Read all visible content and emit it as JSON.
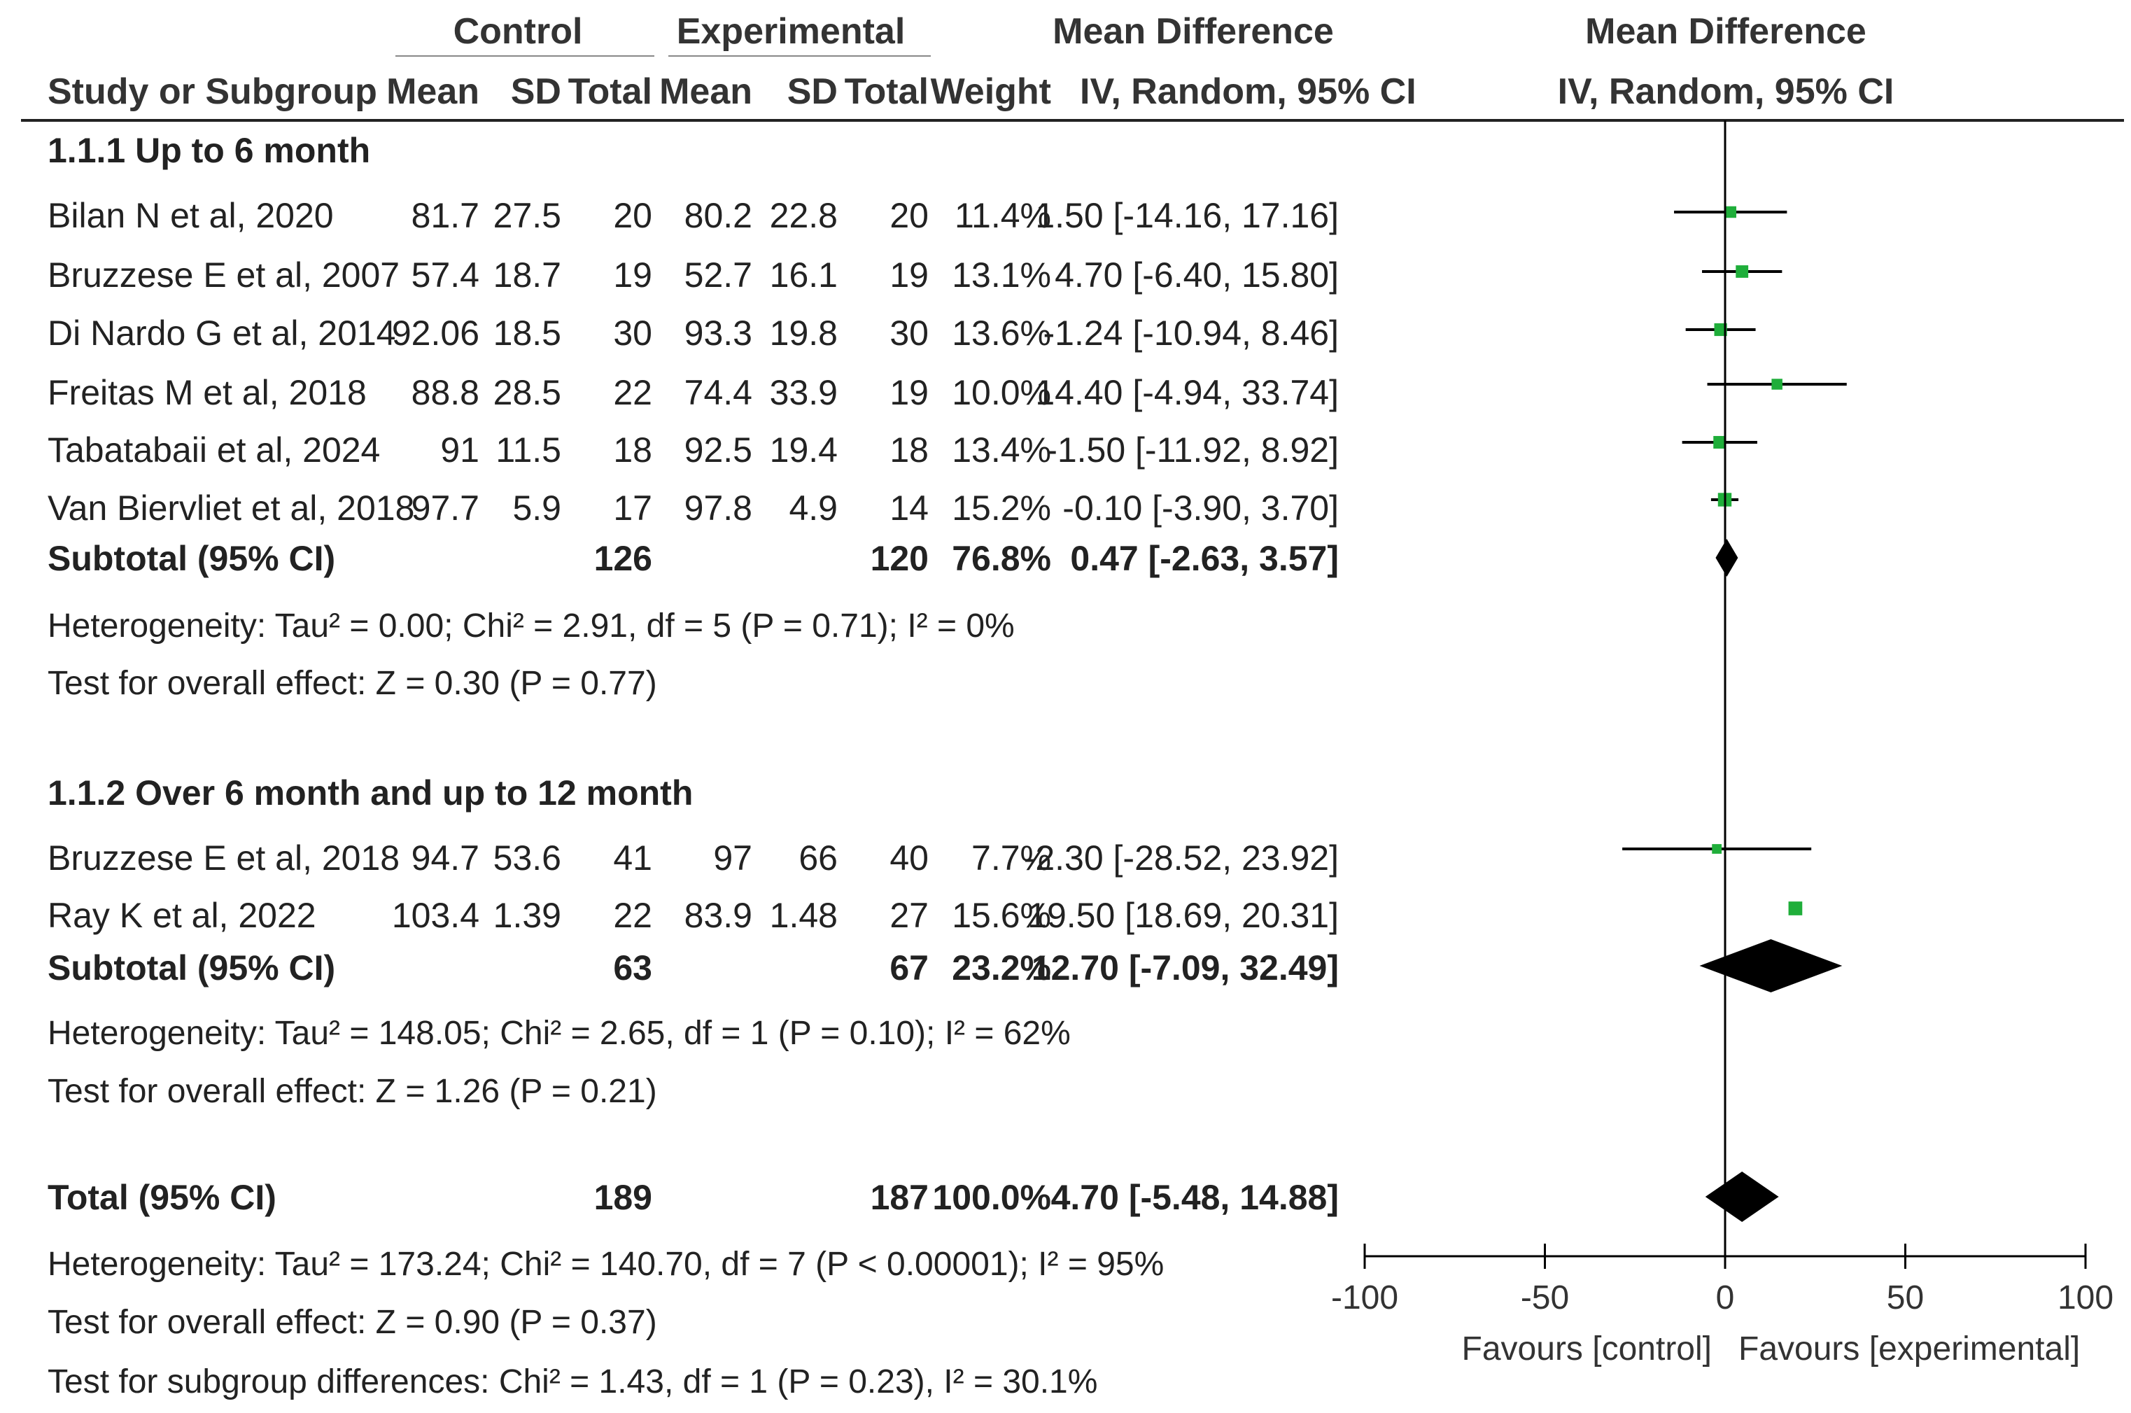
{
  "headers": {
    "control": "Control",
    "experimental": "Experimental",
    "md_table": "Mean Difference",
    "md_plot": "Mean Difference",
    "study": "Study or Subgroup",
    "mean": "Mean",
    "sd": "SD",
    "total": "Total",
    "weight": "Weight",
    "method_table": "IV, Random, 95% CI",
    "method_plot": "IV, Random, 95% CI"
  },
  "groups": [
    {
      "title": "1.1.1 Up to 6 month",
      "studies": [
        {
          "name": "Bilan N et al, 2020",
          "c_mean": "81.7",
          "c_sd": "27.5",
          "c_total": "20",
          "e_mean": "80.2",
          "e_sd": "22.8",
          "e_total": "20",
          "weight": "11.4%",
          "ci_text": "1.50 [-14.16, 17.16]",
          "md": 1.5,
          "lo": -14.16,
          "hi": 17.16,
          "w": 11.4
        },
        {
          "name": "Bruzzese E et al, 2007",
          "c_mean": "57.4",
          "c_sd": "18.7",
          "c_total": "19",
          "e_mean": "52.7",
          "e_sd": "16.1",
          "e_total": "19",
          "weight": "13.1%",
          "ci_text": "4.70 [-6.40, 15.80]",
          "md": 4.7,
          "lo": -6.4,
          "hi": 15.8,
          "w": 13.1
        },
        {
          "name": "Di Nardo G et al, 2014",
          "c_mean": "92.06",
          "c_sd": "18.5",
          "c_total": "30",
          "e_mean": "93.3",
          "e_sd": "19.8",
          "e_total": "30",
          "weight": "13.6%",
          "ci_text": "-1.24 [-10.94, 8.46]",
          "md": -1.24,
          "lo": -10.94,
          "hi": 8.46,
          "w": 13.6
        },
        {
          "name": "Freitas M et al, 2018",
          "c_mean": "88.8",
          "c_sd": "28.5",
          "c_total": "22",
          "e_mean": "74.4",
          "e_sd": "33.9",
          "e_total": "19",
          "weight": "10.0%",
          "ci_text": "14.40 [-4.94, 33.74]",
          "md": 14.4,
          "lo": -4.94,
          "hi": 33.74,
          "w": 10.0
        },
        {
          "name": "Tabatabaii et al, 2024",
          "c_mean": "91",
          "c_sd": "11.5",
          "c_total": "18",
          "e_mean": "92.5",
          "e_sd": "19.4",
          "e_total": "18",
          "weight": "13.4%",
          "ci_text": "-1.50 [-11.92, 8.92]",
          "md": -1.5,
          "lo": -11.92,
          "hi": 8.92,
          "w": 13.4
        },
        {
          "name": "Van Biervliet et al, 2018",
          "c_mean": "97.7",
          "c_sd": "5.9",
          "c_total": "17",
          "e_mean": "97.8",
          "e_sd": "4.9",
          "e_total": "14",
          "weight": "15.2%",
          "ci_text": "-0.10 [-3.90, 3.70]",
          "md": -0.1,
          "lo": -3.9,
          "hi": 3.7,
          "w": 15.2
        }
      ],
      "subtotal": {
        "label": "Subtotal (95% CI)",
        "c_total": "126",
        "e_total": "120",
        "weight": "76.8%",
        "ci_text": "0.47 [-2.63, 3.57]",
        "md": 0.47,
        "lo": -2.63,
        "hi": 3.57
      },
      "heterogeneity": "Heterogeneity: Tau² = 0.00; Chi² = 2.91, df = 5 (P = 0.71); I² = 0%",
      "overall": "Test for overall effect: Z = 0.30 (P = 0.77)"
    },
    {
      "title": "1.1.2 Over 6 month and up to 12 month",
      "studies": [
        {
          "name": "Bruzzese E et al, 2018",
          "c_mean": "94.7",
          "c_sd": "53.6",
          "c_total": "41",
          "e_mean": "97",
          "e_sd": "66",
          "e_total": "40",
          "weight": "7.7%",
          "ci_text": "-2.30 [-28.52, 23.92]",
          "md": -2.3,
          "lo": -28.52,
          "hi": 23.92,
          "w": 7.7
        },
        {
          "name": "Ray K et al, 2022",
          "c_mean": "103.4",
          "c_sd": "1.39",
          "c_total": "22",
          "e_mean": "83.9",
          "e_sd": "1.48",
          "e_total": "27",
          "weight": "15.6%",
          "ci_text": "19.50 [18.69, 20.31]",
          "md": 19.5,
          "lo": 18.69,
          "hi": 20.31,
          "w": 15.6
        }
      ],
      "subtotal": {
        "label": "Subtotal (95% CI)",
        "c_total": "63",
        "e_total": "67",
        "weight": "23.2%",
        "ci_text": "12.70 [-7.09, 32.49]",
        "md": 12.7,
        "lo": -7.09,
        "hi": 32.49
      },
      "heterogeneity": "Heterogeneity: Tau² = 148.05; Chi² = 2.65, df = 1 (P = 0.10); I² = 62%",
      "overall": "Test for overall effect: Z = 1.26 (P = 0.21)"
    }
  ],
  "total": {
    "label": "Total (95% CI)",
    "c_total": "189",
    "e_total": "187",
    "weight": "100.0%",
    "ci_text": "4.70 [-5.48, 14.88]",
    "md": 4.7,
    "lo": -5.48,
    "hi": 14.88,
    "heterogeneity": "Heterogeneity: Tau² = 173.24; Chi² = 140.70, df = 7 (P < 0.00001); I² = 95%",
    "overall": "Test for overall effect: Z = 0.90 (P = 0.37)",
    "subgroup": "Test for subgroup differences: Chi² = 1.43, df = 1 (P = 0.23), I² = 30.1%"
  },
  "chart_data": {
    "type": "forest",
    "title": "Mean Difference",
    "xlabel": "IV, Random, 95% CI",
    "xlim": [
      -100,
      100
    ],
    "ticks": [
      -100,
      -50,
      0,
      50,
      100
    ],
    "favours_left": "Favours [control]",
    "favours_right": "Favours [experimental]",
    "square_color": "#1fae3a",
    "diamond_color": "#000000"
  }
}
